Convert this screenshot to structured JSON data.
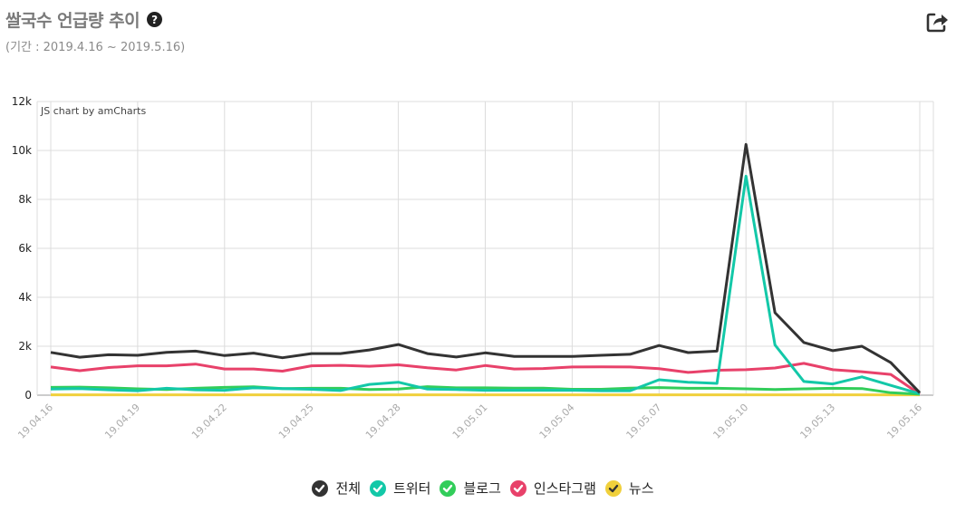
{
  "header": {
    "title": "쌀국수 언급량 추이",
    "help_glyph": "?",
    "subtitle": "(기간 : 2019.4.16 ~ 2019.5.16)"
  },
  "chart_data": {
    "type": "line",
    "credit": "JS chart by amCharts",
    "x": [
      "19.04.16",
      "19.04.17",
      "19.04.18",
      "19.04.19",
      "19.04.20",
      "19.04.21",
      "19.04.22",
      "19.04.23",
      "19.04.24",
      "19.04.25",
      "19.04.26",
      "19.04.27",
      "19.04.28",
      "19.04.29",
      "19.04.30",
      "19.05.01",
      "19.05.02",
      "19.05.03",
      "19.05.04",
      "19.05.05",
      "19.05.06",
      "19.05.07",
      "19.05.08",
      "19.05.09",
      "19.05.10",
      "19.05.11",
      "19.05.12",
      "19.05.13",
      "19.05.14",
      "19.05.15",
      "19.05.16"
    ],
    "x_tick_labels": [
      "19.04.16",
      "19.04.19",
      "19.04.22",
      "19.04.25",
      "19.04.28",
      "19.05.01",
      "19.05.04",
      "19.05.07",
      "19.05.10",
      "19.05.13",
      "19.05.16"
    ],
    "y_tick_labels": [
      "0",
      "2k",
      "4k",
      "6k",
      "8k",
      "10k",
      "12k"
    ],
    "ylim": [
      0,
      12000
    ],
    "grid": true,
    "legend_position": "bottom",
    "series": [
      {
        "name": "전체",
        "color": "#333333",
        "values": [
          1750,
          1550,
          1650,
          1630,
          1750,
          1800,
          1620,
          1720,
          1530,
          1700,
          1700,
          1850,
          2070,
          1700,
          1560,
          1730,
          1580,
          1580,
          1580,
          1630,
          1670,
          2030,
          1740,
          1800,
          10250,
          3370,
          2150,
          1820,
          2000,
          1330,
          100
        ]
      },
      {
        "name": "트위터",
        "color": "#13c8a8",
        "values": [
          250,
          270,
          220,
          180,
          280,
          220,
          200,
          300,
          270,
          240,
          190,
          440,
          530,
          250,
          230,
          200,
          200,
          200,
          200,
          180,
          180,
          630,
          530,
          480,
          8950,
          2050,
          560,
          460,
          750,
          400,
          60
        ]
      },
      {
        "name": "블로그",
        "color": "#32cd5a",
        "values": [
          320,
          330,
          300,
          260,
          230,
          280,
          320,
          340,
          270,
          280,
          280,
          230,
          250,
          350,
          300,
          300,
          290,
          290,
          240,
          240,
          290,
          310,
          280,
          280,
          260,
          230,
          260,
          280,
          270,
          100,
          40
        ]
      },
      {
        "name": "인스타그램",
        "color": "#e8416a",
        "values": [
          1150,
          1000,
          1130,
          1200,
          1200,
          1270,
          1070,
          1070,
          980,
          1200,
          1220,
          1180,
          1240,
          1120,
          1030,
          1210,
          1070,
          1090,
          1150,
          1160,
          1150,
          1080,
          930,
          1020,
          1040,
          1110,
          1300,
          1040,
          960,
          850,
          40
        ]
      },
      {
        "name": "뉴스",
        "color": "#f0d03c",
        "values": [
          15,
          15,
          15,
          15,
          15,
          15,
          15,
          15,
          15,
          15,
          15,
          15,
          15,
          15,
          15,
          15,
          15,
          15,
          15,
          15,
          15,
          15,
          15,
          15,
          15,
          15,
          15,
          15,
          15,
          15,
          15
        ]
      }
    ]
  }
}
